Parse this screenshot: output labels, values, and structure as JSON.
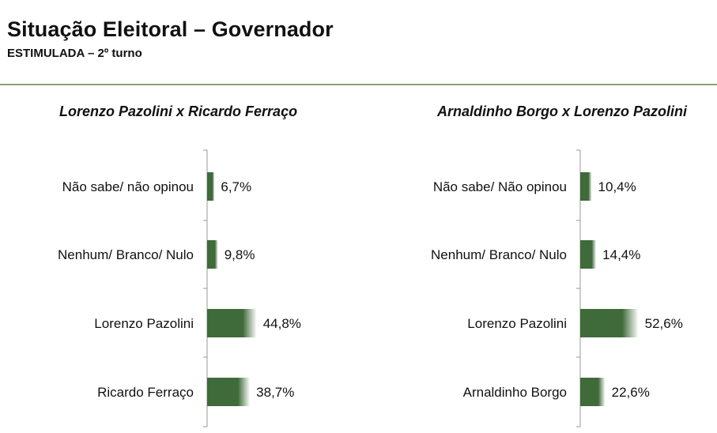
{
  "header": {
    "title": "Situação Eleitoral – Governador",
    "subtitle": "ESTIMULADA – 2º turno"
  },
  "colors": {
    "bar_dark": "#3f6a3a",
    "bar_light": "#ffffff",
    "rule": "#8aa07a"
  },
  "chart_data": [
    {
      "type": "bar",
      "orientation": "horizontal",
      "title": "Lorenzo Pazolini x Ricardo Ferraço",
      "categories": [
        "Não sabe/ não opinou",
        "Nenhum/ Branco/ Nulo",
        "Lorenzo Pazolini",
        "Ricardo Ferraço"
      ],
      "values": [
        6.7,
        9.8,
        44.8,
        38.7
      ],
      "value_labels": [
        "6,7%",
        "9,8%",
        "44,8%",
        "38,7%"
      ],
      "xlim": [
        0,
        100
      ],
      "grid": false
    },
    {
      "type": "bar",
      "orientation": "horizontal",
      "title": "Arnaldinho Borgo x Lorenzo Pazolini",
      "categories": [
        "Não sabe/ Não opinou",
        "Nenhum/ Branco/ Nulo",
        "Lorenzo Pazolini",
        "Arnaldinho Borgo"
      ],
      "values": [
        10.4,
        14.4,
        52.6,
        22.6
      ],
      "value_labels": [
        "10,4%",
        "14,4%",
        "52,6%",
        "22,6%"
      ],
      "xlim": [
        0,
        100
      ],
      "grid": false
    }
  ]
}
